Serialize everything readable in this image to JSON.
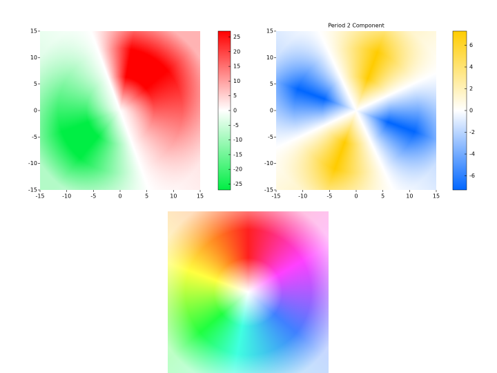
{
  "chart_data": [
    {
      "type": "heatmap",
      "xlim": [
        -15,
        15
      ],
      "ylim": [
        -15,
        15
      ],
      "xticks": [
        -15,
        -10,
        -5,
        0,
        5,
        10,
        15
      ],
      "yticks": [
        -15,
        -10,
        -5,
        0,
        5,
        10,
        15
      ],
      "colorbar": {
        "lim": [
          -27,
          27
        ],
        "ticks": [
          -25,
          -20,
          -15,
          -10,
          -5,
          0,
          5,
          10,
          15,
          20,
          25
        ],
        "colormap": [
          "#00ee44",
          "#ffffff",
          "#ff0000"
        ]
      }
    },
    {
      "type": "heatmap",
      "title": "Period 2 Component",
      "xlim": [
        -15,
        15
      ],
      "ylim": [
        -15,
        15
      ],
      "xticks": [
        -15,
        -10,
        -5,
        0,
        5,
        10,
        15
      ],
      "yticks": [
        -15,
        -10,
        -5,
        0,
        5,
        10,
        15
      ],
      "colorbar": {
        "lim": [
          -7.3,
          7.3
        ],
        "ticks": [
          -6,
          -4,
          -2,
          0,
          2,
          4,
          6
        ],
        "colormap": [
          "#0066ff",
          "#ffffff",
          "#ffcc00"
        ]
      }
    },
    {
      "type": "image"
    }
  ]
}
